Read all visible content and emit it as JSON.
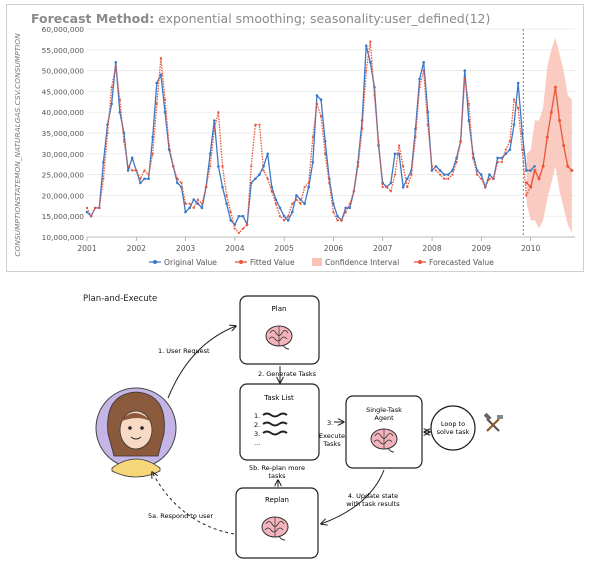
{
  "chart": {
    "title_bold": "Forecast Method:",
    "title_rest": "exponential smoothing; seasonality:user_defined(12)",
    "ylabel": "CONSUMPTIONSTATEMON_NATURALGAS.CSV.CONSUMPTION",
    "legend": [
      "Original Value",
      "Fitted Value",
      "Confidence Interval",
      "Forecasted Value"
    ]
  },
  "chart_data": {
    "type": "line",
    "title": "Forecast Method: exponential smoothing; seasonality:user_defined(12)",
    "ylabel": "CONSUMPTIONSTATEMON_NATURALGAS.CSV.CONSUMPTION",
    "xlabel": "",
    "xlim": [
      2001.0,
      2010.9
    ],
    "ylim": [
      10000000,
      60000000
    ],
    "x_ticks": [
      "2001",
      "2002",
      "2003",
      "2004",
      "2005",
      "2006",
      "2007",
      "2008",
      "2009",
      "2010"
    ],
    "y_ticks": [
      "10,000,000",
      "15,000,000",
      "20,000,000",
      "25,000,000",
      "30,000,000",
      "35,000,000",
      "40,000,000",
      "45,000,000",
      "50,000,000",
      "55,000,000",
      "60,000,000"
    ],
    "forecast_start": 2009.85,
    "colors": {
      "original": "#3a78c8",
      "fitted": "#e8553a",
      "ci": "#f9c3b6",
      "forecast": "#e8553a"
    },
    "series": [
      {
        "name": "Original Value",
        "start": 2001.0,
        "step": 0.0833,
        "values": [
          16,
          15,
          17,
          17,
          28,
          37,
          42,
          52,
          40,
          35,
          26,
          29,
          26,
          23,
          24,
          24,
          34,
          47,
          49,
          40,
          31,
          27,
          23,
          22,
          16,
          17,
          19,
          18,
          17,
          22,
          30,
          38,
          27,
          22,
          18,
          14,
          13,
          15,
          15,
          13,
          23,
          24,
          25,
          27,
          30,
          22,
          19,
          17,
          15,
          14,
          16,
          20,
          19,
          18,
          22,
          28,
          44,
          43,
          33,
          24,
          18,
          15,
          14,
          17,
          17,
          21,
          28,
          38,
          56,
          52,
          46,
          32,
          23,
          22,
          23,
          30,
          30,
          22,
          24,
          26,
          36,
          48,
          52,
          40,
          26,
          27,
          26,
          25,
          25,
          26,
          29,
          33,
          50,
          38,
          30,
          26,
          25,
          22,
          25,
          24,
          29,
          29,
          30,
          31,
          37,
          47,
          35,
          26,
          26,
          27
        ]
      },
      {
        "name": "Fitted Value",
        "start": 2001.0,
        "step": 0.0833,
        "values": [
          17,
          15,
          17,
          17,
          24,
          35,
          46,
          51,
          43,
          33,
          27,
          26,
          26,
          24,
          26,
          25,
          30,
          42,
          53,
          43,
          32,
          27,
          24,
          23,
          18,
          18,
          17,
          19,
          18,
          22,
          27,
          36,
          40,
          27,
          20,
          16,
          12,
          11,
          12,
          13,
          27,
          37,
          37,
          26,
          24,
          21,
          18,
          15,
          14,
          15,
          18,
          19,
          18,
          22,
          23,
          34,
          42,
          39,
          30,
          23,
          16,
          14,
          14,
          16,
          18,
          21,
          27,
          36,
          50,
          57,
          44,
          33,
          22,
          22,
          21,
          25,
          32,
          27,
          22,
          25,
          34,
          46,
          50,
          37,
          27,
          26,
          25,
          24,
          24,
          25,
          28,
          33,
          48,
          42,
          29,
          25,
          24,
          22,
          24,
          24,
          28,
          28,
          31,
          33,
          43,
          41,
          31,
          20,
          22,
          26
        ]
      },
      {
        "name": "Forecasted Value",
        "start": 2009.92,
        "step": 0.0833,
        "values": [
          23,
          22,
          26,
          24,
          27,
          34,
          40,
          46,
          38,
          32,
          27,
          26
        ]
      },
      {
        "name": "Confidence Interval",
        "start": 2009.92,
        "step": 0.0833,
        "lower": [
          18,
          14,
          14,
          12,
          14,
          19,
          23,
          27,
          21,
          17,
          13,
          11
        ],
        "upper": [
          30,
          31,
          38,
          38,
          41,
          51,
          55,
          58,
          54,
          50,
          44,
          43
        ]
      }
    ],
    "legend_position": "bottom"
  },
  "diagram": {
    "title": "Plan-and-Execute",
    "plan_box": "Plan",
    "task_list_box": "Task List",
    "task_list_items": [
      "1.",
      "2.",
      "3.",
      "..."
    ],
    "single_task_box": "Single-Task Agent",
    "replan_box": "Replan",
    "loop_label": "Loop to solve task",
    "arrow_labels": {
      "user_request": "1. User Request",
      "generate_tasks": "2. Generate Tasks",
      "execute": "3.",
      "execute_desc": "Execute Tasks",
      "update_state": "4. Update state with task results",
      "replan_more": "5b. Re-plan more tasks",
      "respond": "5a. Respond to user"
    }
  }
}
